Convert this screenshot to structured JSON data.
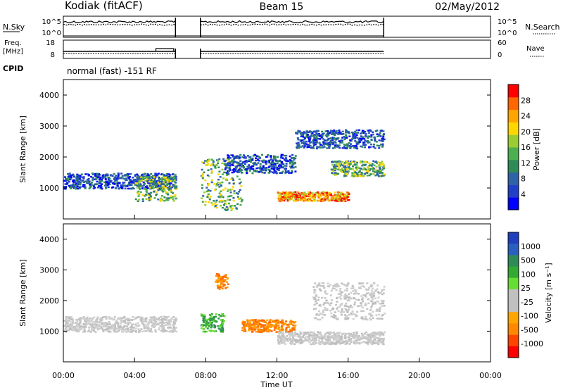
{
  "header": {
    "site": "Kodiak (fitACF)",
    "beam": "Beam 15",
    "date": "02/May/2012",
    "cpid_label": "CPID",
    "cpid_value": "normal (fast) -151 RF"
  },
  "colors": {
    "power_scale": [
      "#0000ff",
      "#2040c8",
      "#2f63a8",
      "#2e8b57",
      "#4caf50",
      "#9acd32",
      "#ffd700",
      "#ffa500",
      "#ff6600",
      "#ff0000"
    ],
    "velocity_scale": [
      "#1f3fbf",
      "#2a5fbf",
      "#2e8b57",
      "#33aa33",
      "#66dd33",
      "#c0c0c0",
      "#c0c0c0",
      "#ffa500",
      "#ff8800",
      "#ff4400",
      "#ff0000"
    ]
  },
  "chart_data": [
    {
      "type": "line",
      "name": "nsky-nsearch-panel",
      "left_label": "N.Sky",
      "right_label": "N.Search",
      "left_ticks": [
        "10^5",
        "10^0"
      ],
      "right_ticks": [
        "10^5",
        "10^0"
      ],
      "gaps_hours": [
        [
          6.3,
          7.7
        ]
      ],
      "x_range_hours": [
        0,
        24
      ]
    },
    {
      "type": "line",
      "name": "freq-nave-panel",
      "left_label_line1": "Freq.",
      "left_label_line2": "[MHz]",
      "right_label": "Nave",
      "left_ticks": [
        "18",
        "8"
      ],
      "right_ticks": [
        "60",
        "0"
      ],
      "gaps_hours": [
        [
          6.3,
          7.7
        ]
      ],
      "x_range_hours": [
        0,
        24
      ]
    },
    {
      "type": "heatmap",
      "name": "power-panel",
      "ylabel": "Slant Range [km]",
      "ylim": [
        0,
        4500
      ],
      "yticks": [
        1000,
        2000,
        3000,
        4000
      ],
      "x_range_hours": [
        0,
        24
      ],
      "colorbar_label": "Power [dB]",
      "colorbar_ticks": [
        "4",
        "8",
        "12",
        "16",
        "20",
        "24",
        "28"
      ],
      "echo_bands": [
        {
          "x": [
            0.0,
            6.3
          ],
          "range_km": [
            1000,
            1500
          ],
          "level": "low"
        },
        {
          "x": [
            4.0,
            6.3
          ],
          "range_km": [
            600,
            1400
          ],
          "level": "mid"
        },
        {
          "x": [
            7.7,
            10.0
          ],
          "range_km": [
            300,
            2000
          ],
          "level": "mid"
        },
        {
          "x": [
            9.0,
            13.0
          ],
          "range_km": [
            1500,
            2100
          ],
          "level": "low"
        },
        {
          "x": [
            12.0,
            16.0
          ],
          "range_km": [
            600,
            900
          ],
          "level": "high"
        },
        {
          "x": [
            15.0,
            18.0
          ],
          "range_km": [
            1400,
            1900
          ],
          "level": "mid"
        },
        {
          "x": [
            13.0,
            18.0
          ],
          "range_km": [
            2300,
            2900
          ],
          "level": "low"
        }
      ]
    },
    {
      "type": "heatmap",
      "name": "velocity-panel",
      "ylabel": "Slant Range [km]",
      "ylim": [
        0,
        4500
      ],
      "yticks": [
        1000,
        2000,
        3000,
        4000
      ],
      "x_range_hours": [
        0,
        24
      ],
      "xticks": [
        "00:00",
        "04:00",
        "08:00",
        "12:00",
        "16:00",
        "20:00",
        "00:00"
      ],
      "xlabel": "Time UT",
      "colorbar_label": "Velocity [m s⁻¹]",
      "colorbar_ticks": [
        "1000",
        "500",
        "100",
        "25",
        "-25",
        "-100",
        "-500",
        "-1000"
      ],
      "echo_bands": [
        {
          "x": [
            0.0,
            6.3
          ],
          "range_km": [
            1000,
            1500
          ],
          "level": "grey"
        },
        {
          "x": [
            7.7,
            9.0
          ],
          "range_km": [
            1000,
            1600
          ],
          "level": "green"
        },
        {
          "x": [
            8.5,
            9.2
          ],
          "range_km": [
            2400,
            2900
          ],
          "level": "orange"
        },
        {
          "x": [
            10.0,
            13.0
          ],
          "range_km": [
            1000,
            1400
          ],
          "level": "orange"
        },
        {
          "x": [
            12.0,
            18.0
          ],
          "range_km": [
            600,
            1000
          ],
          "level": "grey"
        },
        {
          "x": [
            14.0,
            18.0
          ],
          "range_km": [
            1400,
            2600
          ],
          "level": "grey"
        }
      ]
    }
  ]
}
